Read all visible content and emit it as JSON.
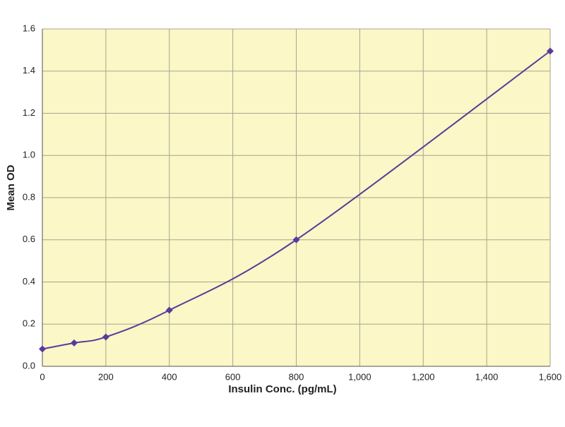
{
  "chart_data": {
    "type": "line",
    "x_label": "Insulin Conc. (pg/mL)",
    "y_label": "Mean OD",
    "x": [
      0,
      100,
      200,
      400,
      800,
      1600
    ],
    "series": [
      {
        "color": "#5a3a9c",
        "values": [
          0.082,
          0.111,
          0.139,
          0.266,
          0.6,
          1.495
        ]
      }
    ],
    "xlim": [
      0,
      1600
    ],
    "xticks": [
      0,
      200,
      400,
      600,
      800,
      {
        "value": 1000,
        "label": "1,000"
      },
      {
        "value": 1200,
        "label": "1,200"
      },
      {
        "value": 1400,
        "label": "1,400"
      },
      {
        "value": 1600,
        "label": "1,600"
      }
    ],
    "ylim": [
      0,
      1.6
    ],
    "yticks": [
      {
        "value": 0,
        "label": "0.0"
      },
      0.2,
      0.4,
      0.6,
      0.8,
      {
        "value": 1,
        "label": "1.0"
      },
      1.2,
      1.4,
      1.6
    ],
    "grid": true,
    "background": "#fbf7c6"
  }
}
